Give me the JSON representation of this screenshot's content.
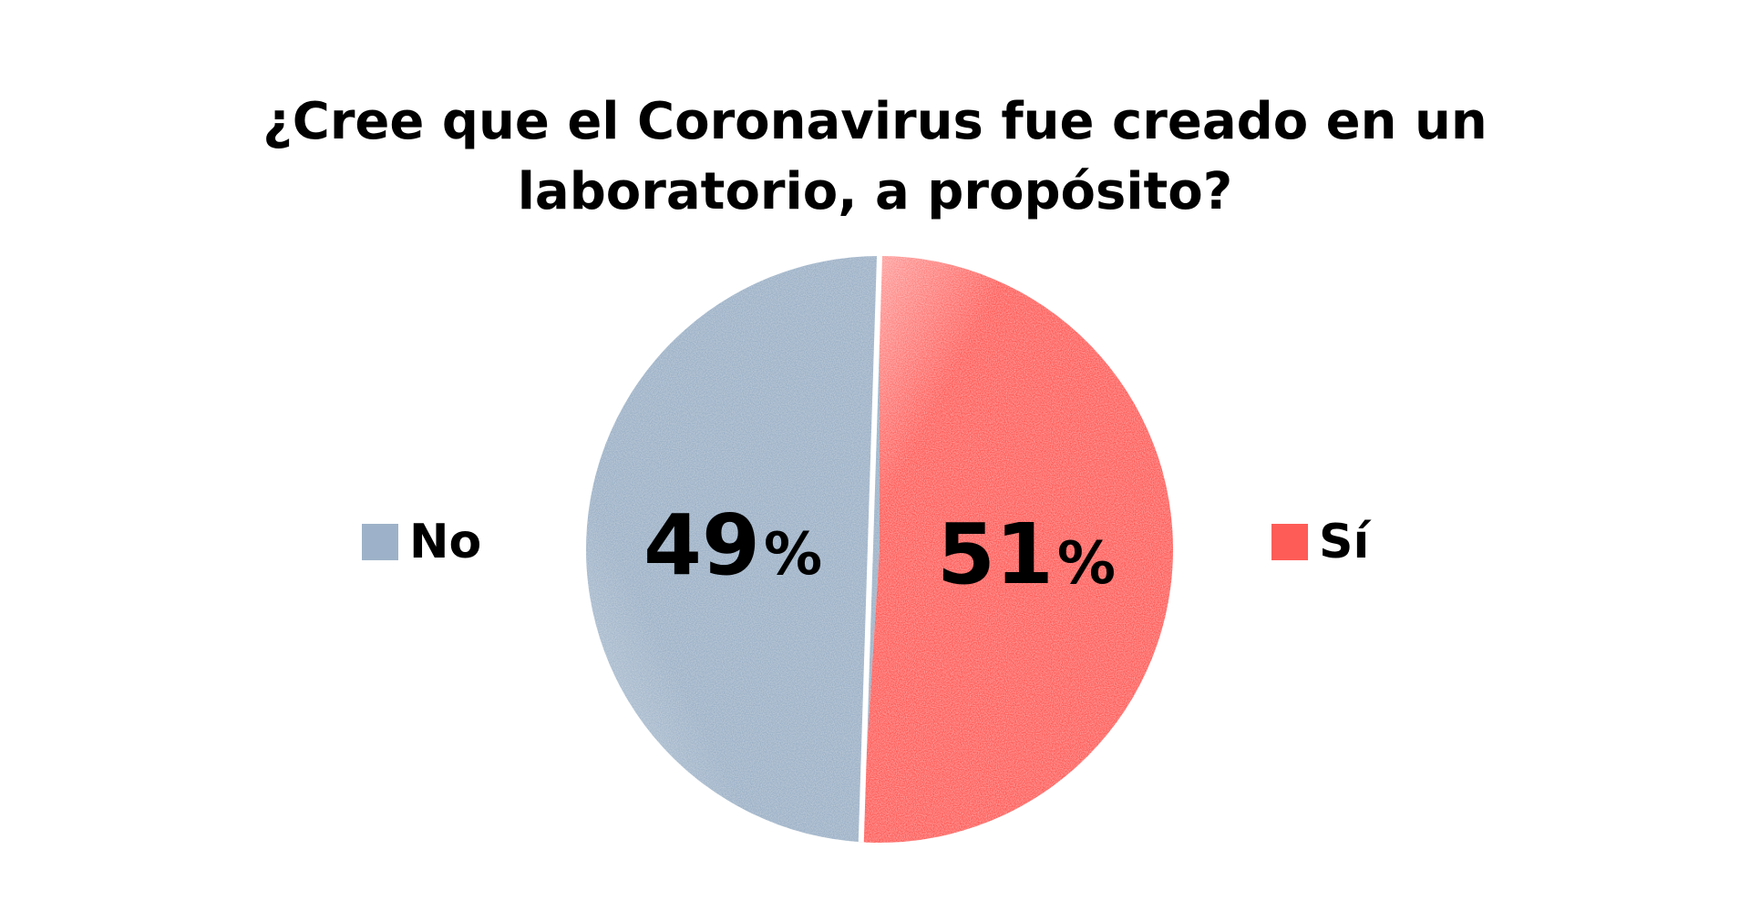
{
  "chart_data": {
    "type": "pie",
    "title_lines": [
      "¿Cree que el Coronavirus fue creado en un",
      "laboratorio, a propósito?"
    ],
    "title": "¿Cree que el Coronavirus fue creado en un laboratorio, a propósito?",
    "categories": [
      "No",
      "Sí"
    ],
    "values": [
      49,
      51
    ],
    "slice_labels": [
      {
        "number": "49",
        "unit": "%"
      },
      {
        "number": "51",
        "unit": "%"
      }
    ],
    "colors": [
      "#9db2c8",
      "#fe5c57"
    ],
    "legend": [
      {
        "label": "No",
        "color": "#9db2c8",
        "placement": "left"
      },
      {
        "label": "Sí",
        "color": "#fe5c57",
        "placement": "right"
      }
    ]
  }
}
